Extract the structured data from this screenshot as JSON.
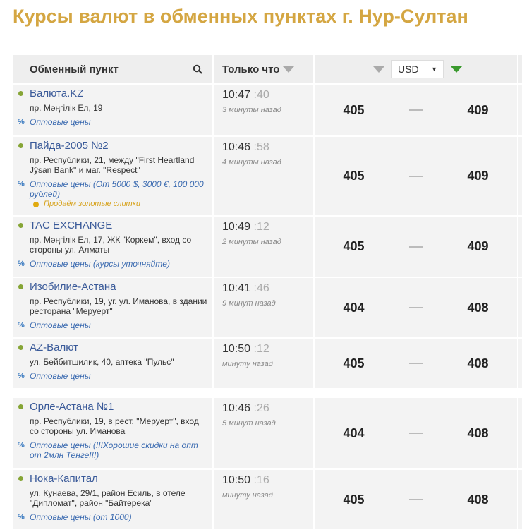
{
  "title": "Курсы валют в обменных пунктах г. Нур-Султан",
  "header": {
    "exchange": "Обменный пункт",
    "time": "Только что",
    "currency": "USD",
    "colors": {
      "title": "#d4a642",
      "sort_active": "#3a9a2e"
    }
  },
  "rows": [
    {
      "name": "Валюта.KZ",
      "address": "пр. Мәңгілік Ел, 19",
      "wholesale": "Оптовые цены",
      "gold": "",
      "time": "10:47",
      "sec": ":40",
      "ago": "3 минуты назад",
      "buy": "405",
      "sell": "409"
    },
    {
      "name": "Пайда-2005 №2",
      "address": "пр. Республики, 21, между \"First Heartland Jýsan Bank\" и маг. \"Respect\"",
      "wholesale": "Оптовые цены (От 5000 $, 3000 €, 100 000 рублей)",
      "gold": "Продаём золотые слитки",
      "time": "10:46",
      "sec": ":58",
      "ago": "4 минуты назад",
      "buy": "405",
      "sell": "409"
    },
    {
      "name": "TAC EXCHANGE",
      "address": "пр. Мәңгілік Ел, 17, ЖК \"Коркем\", вход со стороны ул. Алматы",
      "wholesale": "Оптовые цены (курсы уточняйте)",
      "gold": "",
      "time": "10:49",
      "sec": ":12",
      "ago": "2 минуты назад",
      "buy": "405",
      "sell": "409"
    },
    {
      "name": "Изобилие-Астана",
      "address": "пр. Республики, 19, уг. ул. Иманова, в здании ресторана \"Меруерт\"",
      "wholesale": "Оптовые цены",
      "gold": "",
      "time": "10:41",
      "sec": ":46",
      "ago": "9 минут назад",
      "buy": "404",
      "sell": "408"
    },
    {
      "name": "AZ-Валют",
      "address": "ул. Бейбитшилик, 40, аптека \"Пульс\"",
      "wholesale": "Оптовые цены",
      "gold": "",
      "time": "10:50",
      "sec": ":12",
      "ago": "минуту назад",
      "buy": "405",
      "sell": "408"
    },
    {
      "name": "Орле-Астана №1",
      "address": "пр. Республики, 19, в рест. \"Меруерт\", вход со стороны ул. Иманова",
      "wholesale": "Оптовые цены (!!!Хорошие скидки на опт от 2млн Тенге!!!)",
      "gold": "",
      "time": "10:46",
      "sec": ":26",
      "ago": "5 минут назад",
      "buy": "404",
      "sell": "408"
    },
    {
      "name": "Нока-Капитал",
      "address": "ул. Кунаева, 29/1, район Есиль, в отеле \"Дипломат\", район \"Байтерека\"",
      "wholesale": "Оптовые цены (от 1000)",
      "gold": "",
      "time": "10:50",
      "sec": ":16",
      "ago": "минуту назад",
      "buy": "405",
      "sell": "408"
    }
  ]
}
